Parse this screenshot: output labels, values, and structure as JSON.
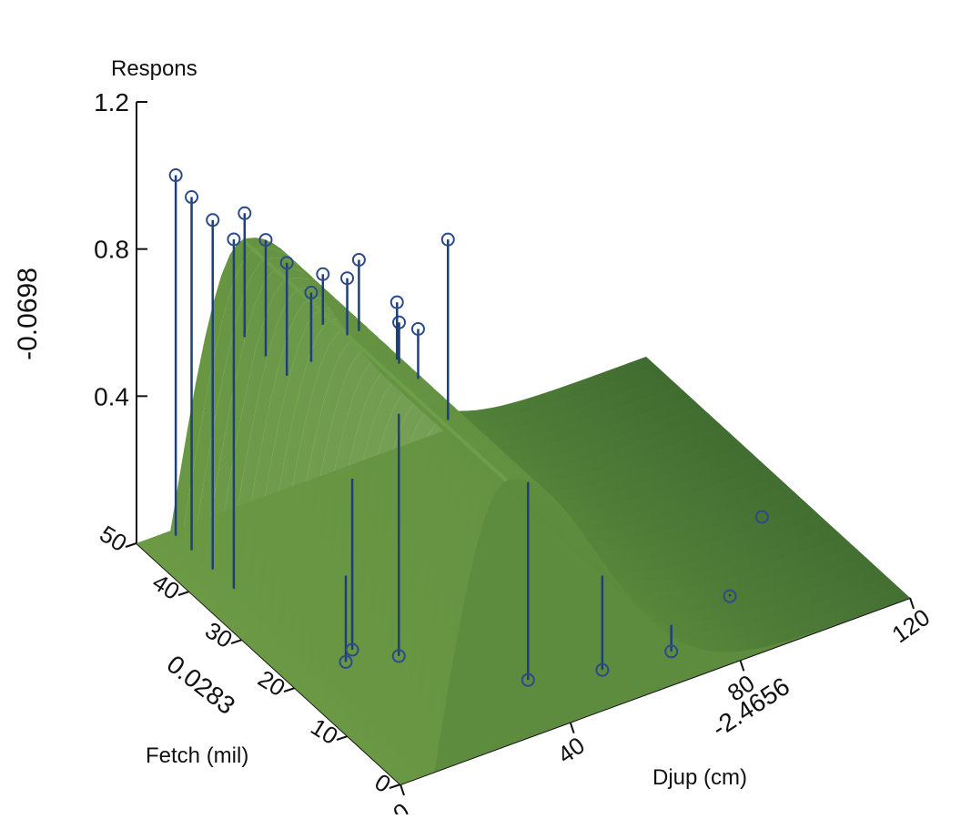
{
  "chart_data": {
    "type": "surface3d",
    "title": "",
    "z_axis": {
      "label": "Respons",
      "ticks": [
        "0.4",
        "0.8",
        "1.2"
      ],
      "range": [
        0,
        1.2
      ],
      "side_label": "-0.0698"
    },
    "y_axis": {
      "label": "Fetch (mil)",
      "ticks": [
        "0",
        "10",
        "20",
        "30",
        "40",
        "50"
      ],
      "range": [
        0,
        50
      ],
      "side_label": "0.0283"
    },
    "x_axis": {
      "label": "Djup (cm)",
      "ticks": [
        "0",
        "40",
        "80",
        "120"
      ],
      "range": [
        0,
        120
      ],
      "side_label": "-2.4656"
    },
    "surface": {
      "description": "response ridge peaking near depth 15-35 cm, flat elsewhere",
      "peak_depth": 25,
      "peak_height": 0.72
    },
    "observations": [
      {
        "d": 8,
        "f": 38,
        "z": 0.95
      },
      {
        "d": 8,
        "f": 42,
        "z": 0.95
      },
      {
        "d": 8,
        "f": 46,
        "z": 0.96
      },
      {
        "d": 8,
        "f": 49,
        "z": 0.98
      },
      {
        "d": 18,
        "f": 36,
        "z": 0.87
      },
      {
        "d": 18,
        "f": 40,
        "z": 0.88
      },
      {
        "d": 18,
        "f": 44,
        "z": 0.9
      },
      {
        "d": 20,
        "f": 33,
        "z": 0.82
      },
      {
        "d": 24,
        "f": 34,
        "z": 0.84
      },
      {
        "d": 26,
        "f": 31,
        "z": 0.86
      },
      {
        "d": 30,
        "f": 32,
        "z": 0.88
      },
      {
        "d": 32,
        "f": 26,
        "z": 0.78
      },
      {
        "d": 34,
        "f": 24,
        "z": 0.78
      },
      {
        "d": 34,
        "f": 28,
        "z": 0.8
      },
      {
        "d": 46,
        "f": 28,
        "z": 0.92
      },
      {
        "d": 12,
        "f": 20,
        "z": 0.02
      },
      {
        "d": 16,
        "f": 22,
        "z": 0.01
      },
      {
        "d": 22,
        "f": 18,
        "z": 0.02
      },
      {
        "d": 40,
        "f": 8,
        "z": 0.01
      },
      {
        "d": 55,
        "f": 6,
        "z": 0.0
      },
      {
        "d": 70,
        "f": 5,
        "z": 0.0
      },
      {
        "d": 90,
        "f": 10,
        "z": 0.0
      },
      {
        "d": 110,
        "f": 20,
        "z": 0.0
      }
    ]
  }
}
